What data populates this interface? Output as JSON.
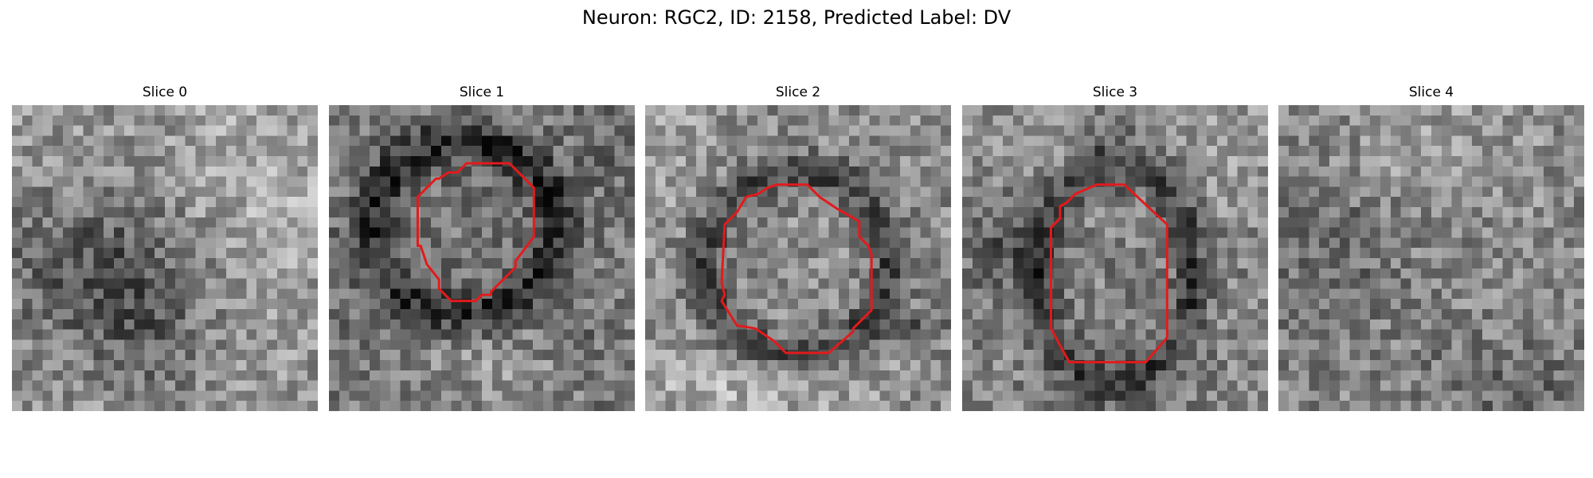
{
  "figure": {
    "title": "Neuron: RGC2, ID: 2158, Predicted Label: DV"
  },
  "panels": [
    {
      "title": "Slice 0",
      "has_roi_contour": false,
      "mean_gray": 150
    },
    {
      "title": "Slice 1",
      "has_roi_contour": true,
      "mean_gray": 118
    },
    {
      "title": "Slice 2",
      "has_roi_contour": true,
      "mean_gray": 140
    },
    {
      "title": "Slice 3",
      "has_roi_contour": true,
      "mean_gray": 130
    },
    {
      "title": "Slice 4",
      "has_roi_contour": false,
      "mean_gray": 135
    }
  ],
  "colors": {
    "contour": "#e31a1c",
    "background": "#ffffff"
  },
  "colormap": "gray"
}
